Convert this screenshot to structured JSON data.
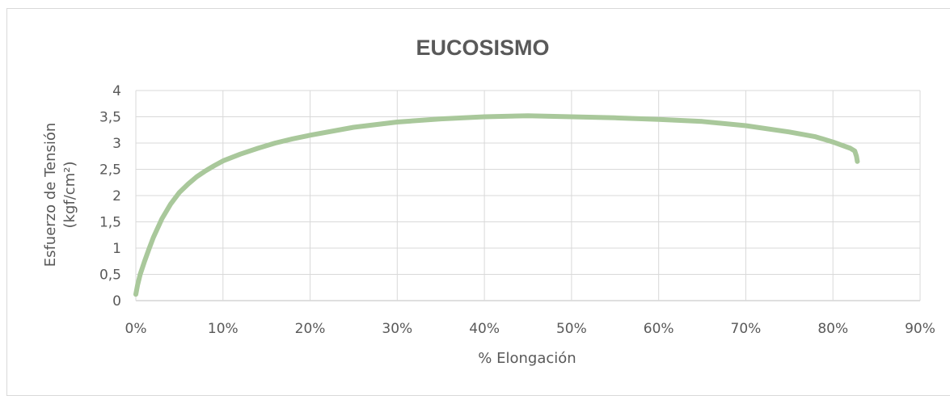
{
  "chart_data": {
    "type": "line",
    "title": "EUCOSISMO",
    "xlabel": "% Elongación",
    "ylabel_line1": "Esfuerzo de Tensión",
    "ylabel_line2": "(kgf/cm²)",
    "xlim": [
      0,
      0.9
    ],
    "ylim": [
      0,
      4
    ],
    "x_ticks": [
      0,
      0.1,
      0.2,
      0.3,
      0.4,
      0.5,
      0.6,
      0.7,
      0.8,
      0.9
    ],
    "x_tick_labels": [
      "0%",
      "10%",
      "20%",
      "30%",
      "40%",
      "50%",
      "60%",
      "70%",
      "80%",
      "90%"
    ],
    "y_ticks": [
      0,
      0.5,
      1,
      1.5,
      2,
      2.5,
      3,
      3.5,
      4
    ],
    "y_tick_labels": [
      "0",
      "0,5",
      "1",
      "1,5",
      "2",
      "2,5",
      "3",
      "3,5",
      "4"
    ],
    "grid": true,
    "legend": "none",
    "series": [
      {
        "color": "#a9c89b",
        "x": [
          0.0,
          0.002,
          0.005,
          0.01,
          0.015,
          0.02,
          0.03,
          0.04,
          0.05,
          0.06,
          0.07,
          0.08,
          0.09,
          0.1,
          0.12,
          0.14,
          0.16,
          0.18,
          0.2,
          0.25,
          0.3,
          0.35,
          0.4,
          0.45,
          0.5,
          0.55,
          0.6,
          0.65,
          0.7,
          0.75,
          0.78,
          0.8,
          0.82,
          0.825,
          0.827,
          0.828
        ],
        "y": [
          0.12,
          0.3,
          0.5,
          0.75,
          0.98,
          1.2,
          1.56,
          1.84,
          2.06,
          2.22,
          2.36,
          2.47,
          2.57,
          2.66,
          2.79,
          2.9,
          3.0,
          3.08,
          3.15,
          3.3,
          3.4,
          3.46,
          3.5,
          3.52,
          3.5,
          3.48,
          3.45,
          3.41,
          3.33,
          3.21,
          3.12,
          3.02,
          2.9,
          2.85,
          2.75,
          2.65
        ]
      }
    ]
  }
}
